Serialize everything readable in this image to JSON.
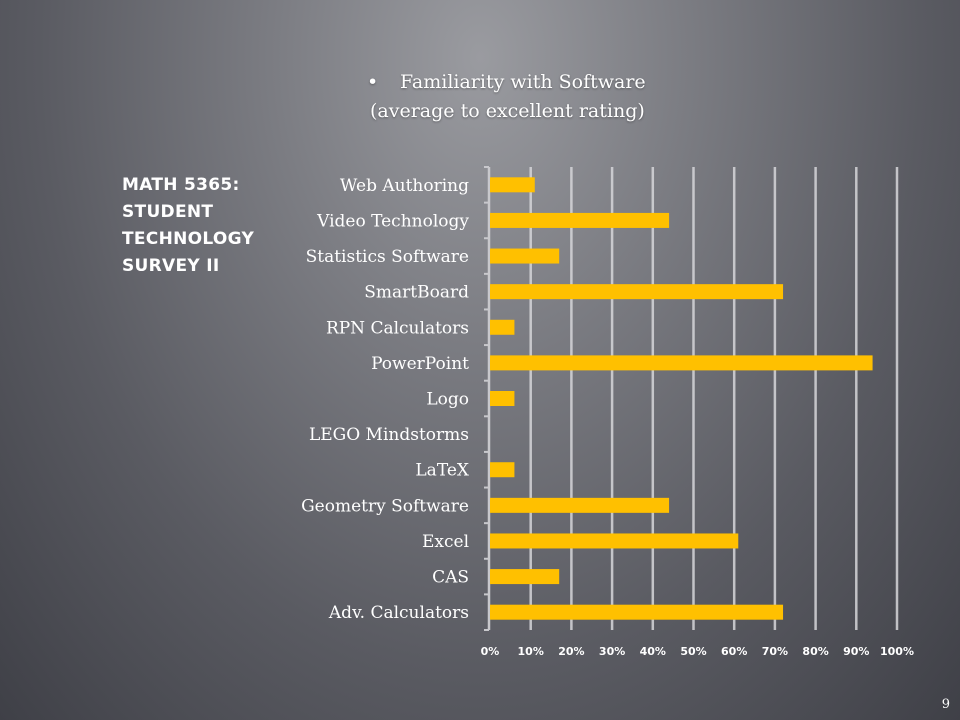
{
  "heading": {
    "bullet": "•",
    "line1": "Familiarity with Software",
    "line2": "(average to excellent rating)"
  },
  "side_title": [
    "MATH 5365:",
    "STUDENT",
    "TECHNOLOGY",
    "SURVEY II"
  ],
  "page_number": "9",
  "chart_data": {
    "type": "bar",
    "orientation": "horizontal",
    "categories": [
      "Web Authoring",
      "Video Technology",
      "Statistics Software",
      "SmartBoard",
      "RPN Calculators",
      "PowerPoint",
      "Logo",
      "LEGO Mindstorms",
      "LaTeX",
      "Geometry Software",
      "Excel",
      "CAS",
      "Adv. Calculators"
    ],
    "values": [
      0.11,
      0.44,
      0.17,
      0.72,
      0.06,
      0.94,
      0.06,
      0,
      0.06,
      0.44,
      0.61,
      0.17,
      0.72
    ],
    "xlim": [
      0,
      1
    ],
    "xticks": [
      "0%",
      "10%",
      "20%",
      "30%",
      "40%",
      "50%",
      "60%",
      "70%",
      "80%",
      "90%",
      "100%"
    ],
    "grid": true,
    "bar_color": "#ffc000",
    "xlabel": "",
    "ylabel": ""
  }
}
